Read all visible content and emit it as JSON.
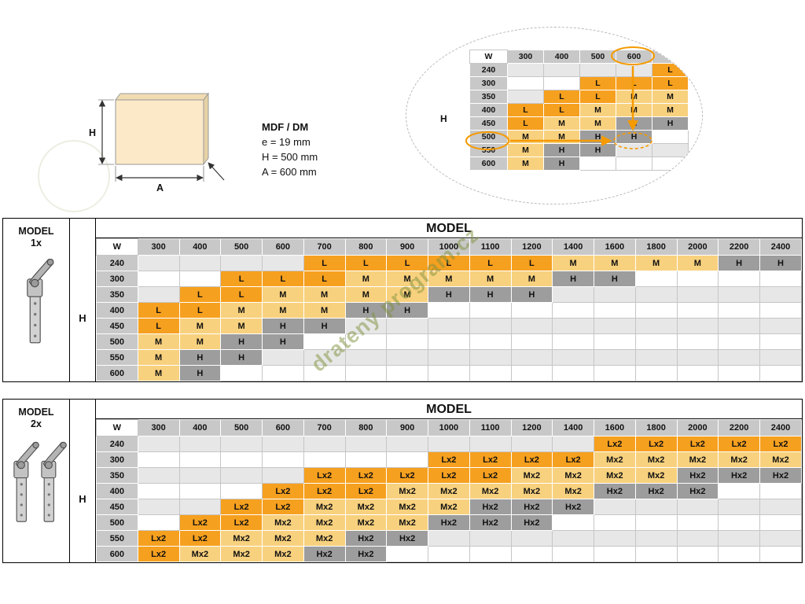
{
  "colors": {
    "L": "#F6A01F",
    "M": "#F8D17E",
    "H": "#9D9D9D",
    "accent": "#F59A00",
    "header_bg": "#C8C8C8",
    "alt_row": "#E7E7E7",
    "panel_face": "#FBE9C8",
    "panel_edge": "#E7D2A6",
    "panel_top": "#F1DCB2"
  },
  "panel_diagram": {
    "h_dim_label": "H",
    "a_dim_label": "A"
  },
  "specs": {
    "material": "MDF / DM",
    "lines": [
      "e = 19 mm",
      "H = 500 mm",
      "A = 600 mm"
    ]
  },
  "zoom_example": {
    "w_label": "W",
    "h_label": "H",
    "highlighted_column": "600",
    "highlighted_row": "500",
    "columns": [
      "300",
      "400",
      "500",
      "600",
      ""
    ],
    "rows": [
      {
        "h": "240",
        "cells": [
          "",
          "",
          "",
          "",
          "L"
        ]
      },
      {
        "h": "300",
        "cells": [
          "",
          "",
          "L",
          "L",
          "L"
        ]
      },
      {
        "h": "350",
        "cells": [
          "",
          "L",
          "L",
          "M",
          "M"
        ]
      },
      {
        "h": "400",
        "cells": [
          "L",
          "L",
          "M",
          "M",
          "M"
        ]
      },
      {
        "h": "450",
        "cells": [
          "L",
          "M",
          "M",
          "H",
          "H"
        ]
      },
      {
        "h": "500",
        "cells": [
          "M",
          "M",
          "H",
          "H",
          ""
        ]
      },
      {
        "h": "550",
        "cells": [
          "M",
          "H",
          "H",
          "",
          ""
        ]
      },
      {
        "h": "600",
        "cells": [
          "M",
          "H",
          "",
          "",
          ""
        ]
      }
    ]
  },
  "tables": [
    {
      "block_label_line1": "MODEL",
      "block_label_line2": "1x",
      "title": "MODEL",
      "w_label": "W",
      "h_label": "H",
      "columns": [
        "300",
        "400",
        "500",
        "600",
        "700",
        "800",
        "900",
        "1000",
        "1100",
        "1200",
        "1400",
        "1600",
        "1800",
        "2000",
        "2200",
        "2400"
      ],
      "rows": [
        {
          "h": "240",
          "cells": [
            "",
            "",
            "",
            "",
            "L",
            "L",
            "L",
            "L",
            "L",
            "L",
            "M",
            "M",
            "M",
            "M",
            "H",
            "H"
          ]
        },
        {
          "h": "300",
          "cells": [
            "",
            "",
            "L",
            "L",
            "L",
            "M",
            "M",
            "M",
            "M",
            "M",
            "H",
            "H",
            "",
            "",
            "",
            ""
          ]
        },
        {
          "h": "350",
          "cells": [
            "",
            "L",
            "L",
            "M",
            "M",
            "M",
            "M",
            "H",
            "H",
            "H",
            "",
            "",
            "",
            "",
            "",
            ""
          ]
        },
        {
          "h": "400",
          "cells": [
            "L",
            "L",
            "M",
            "M",
            "M",
            "H",
            "H",
            "",
            "",
            "",
            "",
            "",
            "",
            "",
            "",
            ""
          ]
        },
        {
          "h": "450",
          "cells": [
            "L",
            "M",
            "M",
            "H",
            "H",
            "",
            "",
            "",
            "",
            "",
            "",
            "",
            "",
            "",
            "",
            ""
          ]
        },
        {
          "h": "500",
          "cells": [
            "M",
            "M",
            "H",
            "H",
            "",
            "",
            "",
            "",
            "",
            "",
            "",
            "",
            "",
            "",
            "",
            ""
          ]
        },
        {
          "h": "550",
          "cells": [
            "M",
            "H",
            "H",
            "",
            "",
            "",
            "",
            "",
            "",
            "",
            "",
            "",
            "",
            "",
            "",
            ""
          ]
        },
        {
          "h": "600",
          "cells": [
            "M",
            "H",
            "",
            "",
            "",
            "",
            "",
            "",
            "",
            "",
            "",
            "",
            "",
            "",
            "",
            ""
          ]
        }
      ]
    },
    {
      "block_label_line1": "MODEL",
      "block_label_line2": "2x",
      "title": "MODEL",
      "w_label": "W",
      "h_label": "H",
      "columns": [
        "300",
        "400",
        "500",
        "600",
        "700",
        "800",
        "900",
        "1000",
        "1100",
        "1200",
        "1400",
        "1600",
        "1800",
        "2000",
        "2200",
        "2400"
      ],
      "rows": [
        {
          "h": "240",
          "cells": [
            "",
            "",
            "",
            "",
            "",
            "",
            "",
            "",
            "",
            "",
            "",
            "Lx2",
            "Lx2",
            "Lx2",
            "Lx2",
            "Lx2"
          ]
        },
        {
          "h": "300",
          "cells": [
            "",
            "",
            "",
            "",
            "",
            "",
            "",
            "Lx2",
            "Lx2",
            "Lx2",
            "Lx2",
            "Mx2",
            "Mx2",
            "Mx2",
            "Mx2",
            "Mx2"
          ]
        },
        {
          "h": "350",
          "cells": [
            "",
            "",
            "",
            "",
            "Lx2",
            "Lx2",
            "Lx2",
            "Lx2",
            "Lx2",
            "Mx2",
            "Mx2",
            "Mx2",
            "Mx2",
            "Hx2",
            "Hx2",
            "Hx2"
          ]
        },
        {
          "h": "400",
          "cells": [
            "",
            "",
            "",
            "Lx2",
            "Lx2",
            "Lx2",
            "Mx2",
            "Mx2",
            "Mx2",
            "Mx2",
            "Mx2",
            "Hx2",
            "Hx2",
            "Hx2",
            "",
            ""
          ]
        },
        {
          "h": "450",
          "cells": [
            "",
            "",
            "Lx2",
            "Lx2",
            "Mx2",
            "Mx2",
            "Mx2",
            "Mx2",
            "Hx2",
            "Hx2",
            "Hx2",
            "",
            "",
            "",
            "",
            ""
          ]
        },
        {
          "h": "500",
          "cells": [
            "",
            "Lx2",
            "Lx2",
            "Mx2",
            "Mx2",
            "Mx2",
            "Mx2",
            "Hx2",
            "Hx2",
            "Hx2",
            "",
            "",
            "",
            "",
            "",
            ""
          ]
        },
        {
          "h": "550",
          "cells": [
            "Lx2",
            "Lx2",
            "Mx2",
            "Mx2",
            "Mx2",
            "Hx2",
            "Hx2",
            "",
            "",
            "",
            "",
            "",
            "",
            "",
            "",
            ""
          ]
        },
        {
          "h": "600",
          "cells": [
            "Lx2",
            "Mx2",
            "Mx2",
            "Mx2",
            "Hx2",
            "Hx2",
            "",
            "",
            "",
            "",
            "",
            "",
            "",
            "",
            "",
            ""
          ]
        }
      ]
    }
  ],
  "watermark": "drateny program.cz"
}
